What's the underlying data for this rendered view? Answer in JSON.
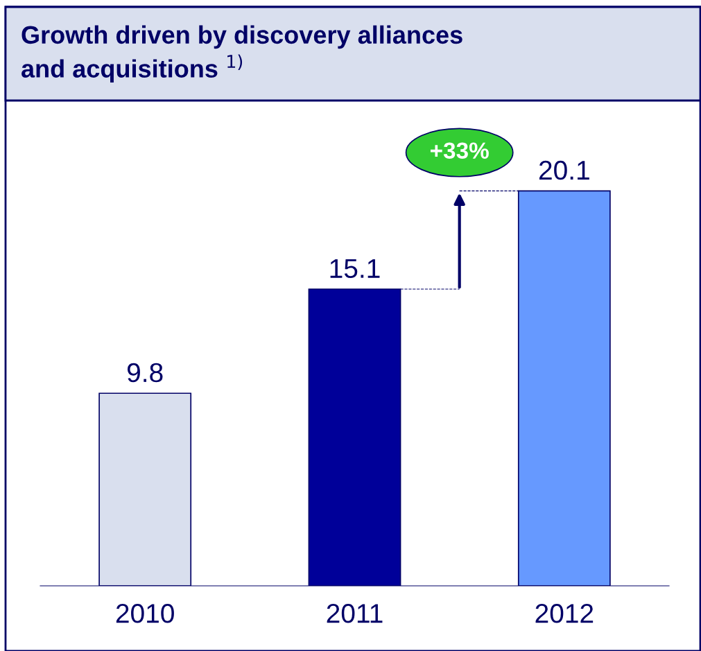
{
  "chart_data": {
    "type": "bar",
    "title": "Growth driven by discovery alliances\nand acquisitions $^{1)}$",
    "categories": [
      "2010",
      "2011",
      "2012"
    ],
    "values": [
      9.8,
      15.1,
      20.1
    ],
    "colors": [
      "#d9dfee",
      "#000099",
      "#6699ff"
    ],
    "data_labels": true,
    "grid": false,
    "tick_labels": "x",
    "annotations": [
      "+33%"
    ]
  }
}
